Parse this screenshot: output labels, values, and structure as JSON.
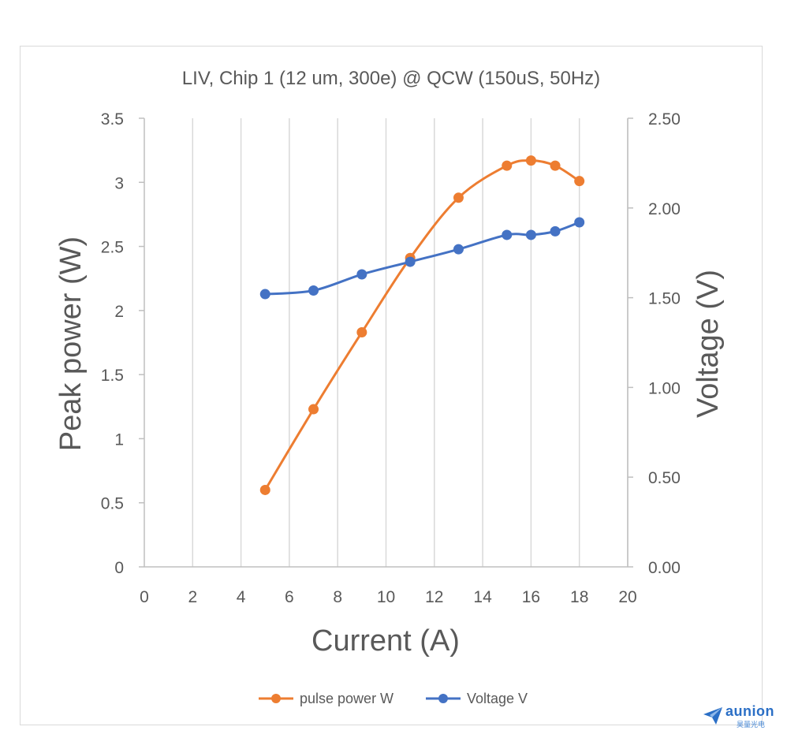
{
  "chart_data": {
    "type": "line",
    "title": "LIV, Chip 1 (12 um, 300e) @ QCW (150uS, 50Hz)",
    "xlabel": "Current (A)",
    "ylabel": "Peak power (W)",
    "y2label": "Voltage (V)",
    "xlim": [
      0,
      20
    ],
    "ylim": [
      0,
      3.5
    ],
    "y2lim": [
      0,
      2.5
    ],
    "x_ticks": [
      "0",
      "2",
      "4",
      "6",
      "8",
      "10",
      "12",
      "14",
      "16",
      "18",
      "20"
    ],
    "y_ticks": [
      "0",
      "0.5",
      "1",
      "1.5",
      "2",
      "2.5",
      "3",
      "3.5"
    ],
    "y2_ticks": [
      "0.00",
      "0.50",
      "1.00",
      "1.50",
      "2.00",
      "2.50"
    ],
    "grid": "vertical",
    "legend_position": "bottom",
    "series": [
      {
        "name": "pulse power W",
        "axis": "left",
        "color": "#ed7d31",
        "smooth": true,
        "x": [
          5,
          7,
          9,
          11,
          13,
          15,
          16,
          17,
          18
        ],
        "y": [
          0.6,
          1.23,
          1.83,
          2.41,
          2.88,
          3.13,
          3.17,
          3.13,
          3.01
        ]
      },
      {
        "name": "Voltage V",
        "axis": "right",
        "color": "#4472c4",
        "smooth": true,
        "x": [
          5,
          7,
          9,
          11,
          13,
          15,
          16,
          17,
          18
        ],
        "y": [
          1.52,
          1.54,
          1.63,
          1.7,
          1.77,
          1.85,
          1.85,
          1.87,
          1.92
        ]
      }
    ]
  },
  "watermark": {
    "brand": "aunion",
    "subtitle": "昊量光电",
    "color": "#2b6fc6",
    "icon": "paper-plane-logo-icon"
  }
}
